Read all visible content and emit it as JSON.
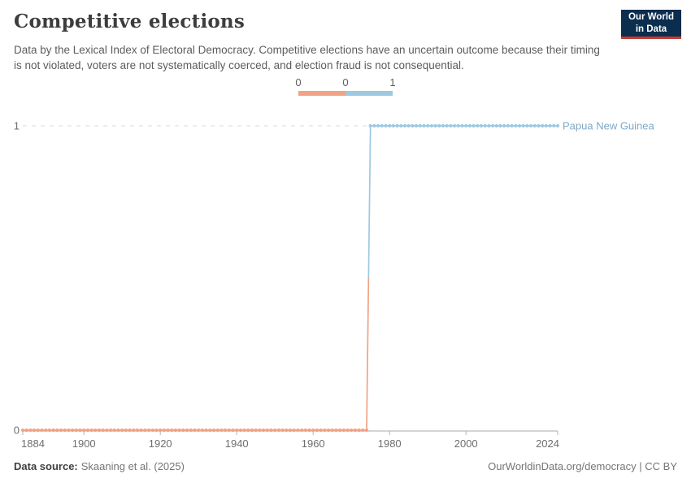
{
  "header": {
    "title": "Competitive elections",
    "subtitle": "Data by the Lexical Index of Electoral Democracy. Competitive elections have an uncertain outcome because their timing is not violated, voters are not systematically coerced, and election fraud is not consequential."
  },
  "logo": {
    "line1": "Our World",
    "line2": "in Data",
    "bg_color": "#0b2d4e",
    "accent_color": "#c53a33"
  },
  "chart_data": {
    "type": "line",
    "title": "Competitive elections",
    "entity_label": "Papua New Guinea",
    "entity_label_color": "#7ea9c8",
    "xlim": [
      1884,
      2024
    ],
    "ylim": [
      0,
      1
    ],
    "x_ticks": [
      1884,
      1900,
      1920,
      1940,
      1960,
      1980,
      2000,
      2024
    ],
    "y_ticks": [
      0,
      1
    ],
    "grid": "dashed-horizontal",
    "series": [
      {
        "name": "Papua New Guinea",
        "segments": [
          {
            "from": 1884,
            "to": 1974,
            "value": 0,
            "color": "#f2a285"
          },
          {
            "from": 1975,
            "to": 2024,
            "value": 1,
            "color": "#9dc9e1"
          }
        ]
      }
    ],
    "legend": {
      "labels": [
        "0",
        "0",
        "1"
      ],
      "segment_colors": [
        "#f2a285",
        "#9dc9e1"
      ],
      "position": "top-center"
    }
  },
  "footer": {
    "datasource_label": "Data source:",
    "datasource_value": "Skaaning et al. (2025)",
    "credit": "OurWorldinData.org/democracy | CC BY"
  }
}
